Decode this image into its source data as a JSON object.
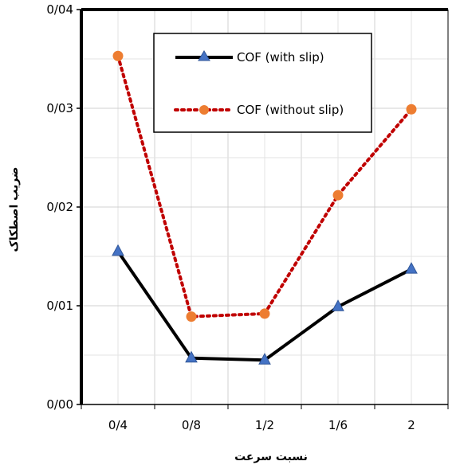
{
  "chart_data": {
    "type": "line",
    "categories": [
      "0/4",
      "0/8",
      "1/2",
      "1/6",
      "2"
    ],
    "y_ticks": [
      "0/00",
      "0/01",
      "0/02",
      "0/03",
      "0/04"
    ],
    "ylim": [
      0,
      0.04
    ],
    "xlabel": "نسبت سرعت",
    "ylabel": "ضریب اصطکاک",
    "grid": true,
    "legend_position": "top-center",
    "series": [
      {
        "name": "COF (with slip)",
        "values": [
          0.0155,
          0.0047,
          0.0045,
          0.0099,
          0.0137
        ],
        "color": "#000000",
        "marker_color": "#4472c4",
        "style": "solid",
        "marker": "triangle"
      },
      {
        "name": "COF (without slip)",
        "values": [
          0.0353,
          0.0089,
          0.0092,
          0.0212,
          0.0299
        ],
        "color": "#c00000",
        "marker_color": "#ed7d31",
        "style": "dotted",
        "marker": "circle"
      }
    ]
  }
}
